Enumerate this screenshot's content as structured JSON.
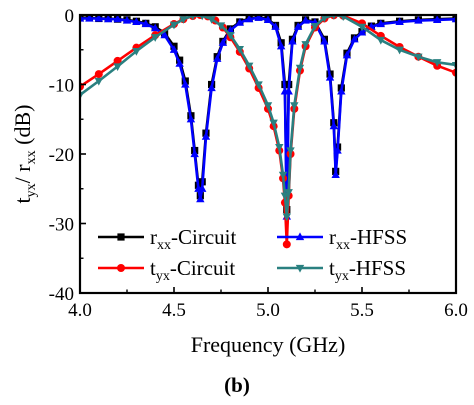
{
  "chart_data": {
    "type": "line",
    "xlabel": "Frequency (GHz)",
    "ylabel": {
      "t": "t",
      "t_sub": "yx",
      "mid": "/ r",
      "r_sub": "xx",
      "unit": " (dB)"
    },
    "xlim": [
      4.0,
      6.0
    ],
    "ylim": [
      -40,
      0
    ],
    "xticks": [
      "4.0",
      "4.5",
      "5.0",
      "5.5",
      "6.0"
    ],
    "xtick_values": [
      4.0,
      4.5,
      5.0,
      5.5,
      6.0
    ],
    "yticks": [
      "0",
      "-10",
      "-20",
      "-30",
      "-40"
    ],
    "ytick_values": [
      0,
      -10,
      -20,
      -30,
      -40
    ],
    "caption": "(b)",
    "legend_placement": "lower-center",
    "series": [
      {
        "name": "Circuit",
        "label_sym": "r",
        "label_sub": "xx",
        "label_suffix": "-Circuit",
        "color": "#000000",
        "marker": "square",
        "x": [
          4.0,
          4.05,
          4.1,
          4.15,
          4.2,
          4.25,
          4.3,
          4.35,
          4.4,
          4.45,
          4.5,
          4.53,
          4.56,
          4.59,
          4.61,
          4.63,
          4.64,
          4.65,
          4.67,
          4.7,
          4.73,
          4.76,
          4.8,
          4.85,
          4.9,
          4.95,
          5.0,
          5.04,
          5.07,
          5.09,
          5.1,
          5.11,
          5.13,
          5.16,
          5.2,
          5.25,
          5.3,
          5.33,
          5.35,
          5.36,
          5.37,
          5.39,
          5.42,
          5.46,
          5.5,
          5.55,
          5.6,
          5.7,
          5.8,
          5.9,
          6.0
        ],
        "y": [
          -0.4,
          -0.4,
          -0.5,
          -0.5,
          -0.6,
          -0.7,
          -0.9,
          -1.2,
          -1.7,
          -2.6,
          -4.5,
          -6.5,
          -9.5,
          -14.5,
          -19.5,
          -24.5,
          -26.0,
          -24.0,
          -17.0,
          -10.0,
          -6.0,
          -3.8,
          -2.0,
          -1.0,
          -0.5,
          -0.3,
          -0.6,
          -1.5,
          -4.0,
          -10.0,
          -28.0,
          -10.0,
          -3.5,
          -1.5,
          -0.7,
          -1.0,
          -3.5,
          -8.5,
          -15.5,
          -22.5,
          -19.0,
          -10.5,
          -5.5,
          -3.3,
          -2.4,
          -1.6,
          -1.2,
          -0.9,
          -0.7,
          -0.6,
          -0.5
        ]
      },
      {
        "name": "HFSS",
        "label_sym": "r",
        "label_sub": "xx",
        "label_suffix": "-HFSS",
        "color": "#0000ff",
        "marker": "triangle-up",
        "x": [
          4.0,
          4.05,
          4.1,
          4.15,
          4.2,
          4.25,
          4.3,
          4.35,
          4.4,
          4.45,
          4.5,
          4.53,
          4.56,
          4.59,
          4.61,
          4.63,
          4.64,
          4.65,
          4.67,
          4.7,
          4.73,
          4.76,
          4.8,
          4.85,
          4.9,
          4.95,
          5.0,
          5.04,
          5.07,
          5.09,
          5.1,
          5.11,
          5.13,
          5.16,
          5.2,
          5.25,
          5.3,
          5.33,
          5.35,
          5.36,
          5.37,
          5.39,
          5.42,
          5.46,
          5.5,
          5.55,
          5.6,
          5.7,
          5.8,
          5.9,
          6.0
        ],
        "y": [
          -0.5,
          -0.5,
          -0.5,
          -0.6,
          -0.6,
          -0.8,
          -1.0,
          -1.3,
          -1.9,
          -2.9,
          -5.0,
          -7.0,
          -10.0,
          -15.0,
          -20.0,
          -25.0,
          -26.5,
          -25.0,
          -17.5,
          -10.5,
          -6.3,
          -4.0,
          -2.2,
          -1.1,
          -0.6,
          -0.4,
          -0.7,
          -1.7,
          -4.5,
          -11.0,
          -29.0,
          -11.0,
          -3.8,
          -1.7,
          -0.8,
          -1.1,
          -3.8,
          -9.0,
          -16.0,
          -23.0,
          -19.5,
          -11.0,
          -5.8,
          -3.5,
          -2.5,
          -1.7,
          -1.3,
          -1.0,
          -0.8,
          -0.7,
          -0.6
        ]
      },
      {
        "name": "Circuit",
        "label_sym": "t",
        "label_sub": "yx",
        "label_suffix": "-Circuit",
        "color": "#ff0000",
        "marker": "circle",
        "x": [
          4.0,
          4.1,
          4.2,
          4.3,
          4.4,
          4.5,
          4.55,
          4.6,
          4.64,
          4.68,
          4.72,
          4.76,
          4.8,
          4.85,
          4.9,
          4.95,
          5.0,
          5.03,
          5.06,
          5.08,
          5.09,
          5.1,
          5.11,
          5.12,
          5.14,
          5.17,
          5.2,
          5.25,
          5.3,
          5.35,
          5.4,
          5.5,
          5.6,
          5.7,
          5.8,
          5.9,
          6.0
        ],
        "y": [
          -10.3,
          -8.5,
          -6.6,
          -4.7,
          -2.9,
          -1.3,
          -0.6,
          -0.15,
          0.0,
          -0.2,
          -0.8,
          -1.8,
          -3.2,
          -5.3,
          -7.7,
          -10.5,
          -13.5,
          -16.0,
          -19.5,
          -23.5,
          -27.0,
          -33.0,
          -26.0,
          -20.0,
          -13.5,
          -8.0,
          -4.5,
          -1.8,
          -0.5,
          -0.05,
          -0.1,
          -1.2,
          -3.0,
          -4.6,
          -6.0,
          -7.3,
          -8.3
        ]
      },
      {
        "name": "HFSS",
        "label_sym": "t",
        "label_sub": "yx",
        "label_suffix": "-HFSS",
        "color": "#2a8080",
        "marker": "triangle-down",
        "x": [
          4.0,
          4.1,
          4.2,
          4.3,
          4.4,
          4.5,
          4.55,
          4.6,
          4.65,
          4.7,
          4.75,
          4.8,
          4.85,
          4.9,
          4.95,
          5.0,
          5.03,
          5.06,
          5.08,
          5.09,
          5.1,
          5.11,
          5.12,
          5.14,
          5.17,
          5.2,
          5.25,
          5.3,
          5.35,
          5.4,
          5.5,
          5.6,
          5.7,
          5.8,
          5.9,
          6.0
        ],
        "y": [
          -11.5,
          -9.5,
          -7.4,
          -5.2,
          -3.2,
          -1.4,
          -0.6,
          -0.1,
          -0.1,
          -0.6,
          -1.5,
          -2.9,
          -4.9,
          -7.3,
          -10.0,
          -13.0,
          -15.5,
          -19.0,
          -23.0,
          -26.0,
          -29.0,
          -25.5,
          -19.5,
          -13.0,
          -7.6,
          -4.2,
          -1.6,
          -0.4,
          0.0,
          -0.2,
          -1.7,
          -3.6,
          -5.0,
          -6.0,
          -6.8,
          -7.2
        ]
      }
    ]
  }
}
